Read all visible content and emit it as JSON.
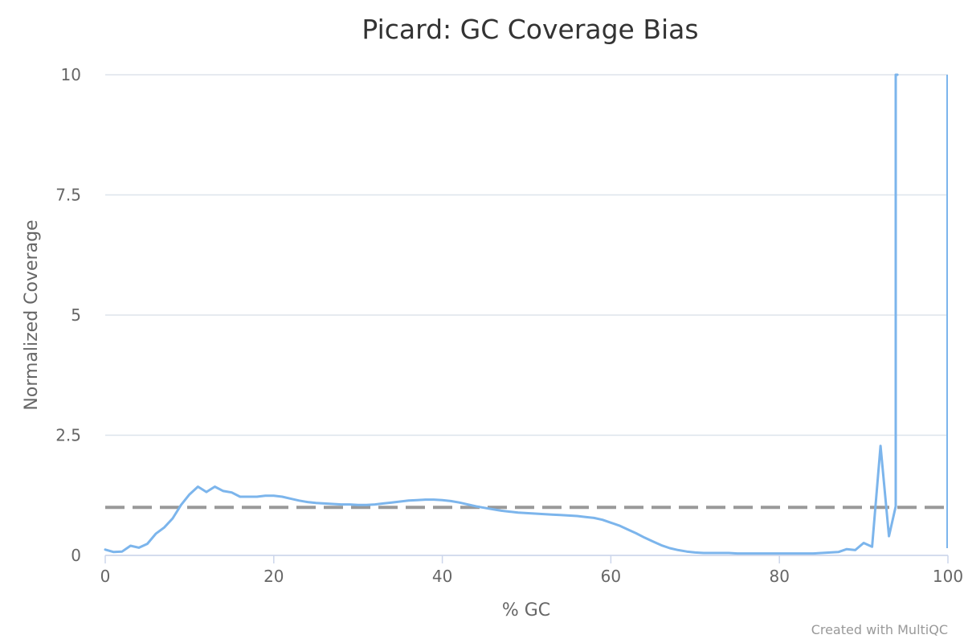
{
  "chart_data": {
    "type": "line",
    "title": "Picard: GC Coverage Bias",
    "xlabel": "% GC",
    "ylabel": "Normalized Coverage",
    "xlim": [
      0,
      100
    ],
    "ylim": [
      0,
      10
    ],
    "x_ticks": [
      "0",
      "20",
      "40",
      "60",
      "80",
      "100"
    ],
    "y_ticks": [
      "0",
      "2.5",
      "5",
      "7.5",
      "10"
    ],
    "x_tick_values": [
      0,
      20,
      40,
      60,
      80,
      100
    ],
    "y_tick_values": [
      0,
      2.5,
      5,
      7.5,
      10
    ],
    "grid": "horizontal",
    "reference_line": {
      "y": 1,
      "style": "dashed",
      "color": "#999999"
    },
    "series": [
      {
        "color": "#7cb5ec",
        "x": [
          0,
          1,
          2,
          3,
          4,
          5,
          6,
          7,
          8,
          9,
          10,
          11,
          12,
          13,
          14,
          15,
          16,
          17,
          18,
          19,
          20,
          21,
          22,
          23,
          24,
          25,
          26,
          27,
          28,
          29,
          30,
          31,
          32,
          33,
          34,
          35,
          36,
          37,
          38,
          39,
          40,
          41,
          42,
          43,
          44,
          45,
          46,
          47,
          48,
          49,
          50,
          51,
          52,
          53,
          54,
          55,
          56,
          57,
          58,
          59,
          60,
          61,
          62,
          63,
          64,
          65,
          66,
          67,
          68,
          69,
          70,
          71,
          72,
          73,
          74,
          75,
          76,
          77,
          78,
          79,
          80,
          81,
          82,
          83,
          84,
          85,
          86,
          87,
          88,
          89,
          90,
          91,
          92,
          93,
          93.8,
          93.8,
          94
        ],
        "y": [
          0.12,
          0.07,
          0.08,
          0.2,
          0.16,
          0.24,
          0.45,
          0.58,
          0.77,
          1.05,
          1.27,
          1.43,
          1.32,
          1.43,
          1.34,
          1.31,
          1.22,
          1.22,
          1.22,
          1.24,
          1.24,
          1.22,
          1.18,
          1.14,
          1.11,
          1.09,
          1.08,
          1.07,
          1.06,
          1.06,
          1.05,
          1.05,
          1.06,
          1.08,
          1.1,
          1.12,
          1.14,
          1.15,
          1.16,
          1.16,
          1.15,
          1.13,
          1.1,
          1.06,
          1.02,
          0.99,
          0.96,
          0.93,
          0.91,
          0.89,
          0.88,
          0.87,
          0.86,
          0.85,
          0.84,
          0.83,
          0.82,
          0.8,
          0.78,
          0.74,
          0.68,
          0.62,
          0.54,
          0.46,
          0.37,
          0.29,
          0.21,
          0.15,
          0.11,
          0.08,
          0.06,
          0.05,
          0.05,
          0.05,
          0.05,
          0.04,
          0.04,
          0.04,
          0.04,
          0.04,
          0.04,
          0.04,
          0.04,
          0.04,
          0.04,
          0.05,
          0.06,
          0.07,
          0.13,
          0.11,
          0.26,
          0.18,
          2.28,
          0.4,
          1.02,
          10,
          10
        ]
      }
    ]
  },
  "credit": "Created with MultiQC"
}
